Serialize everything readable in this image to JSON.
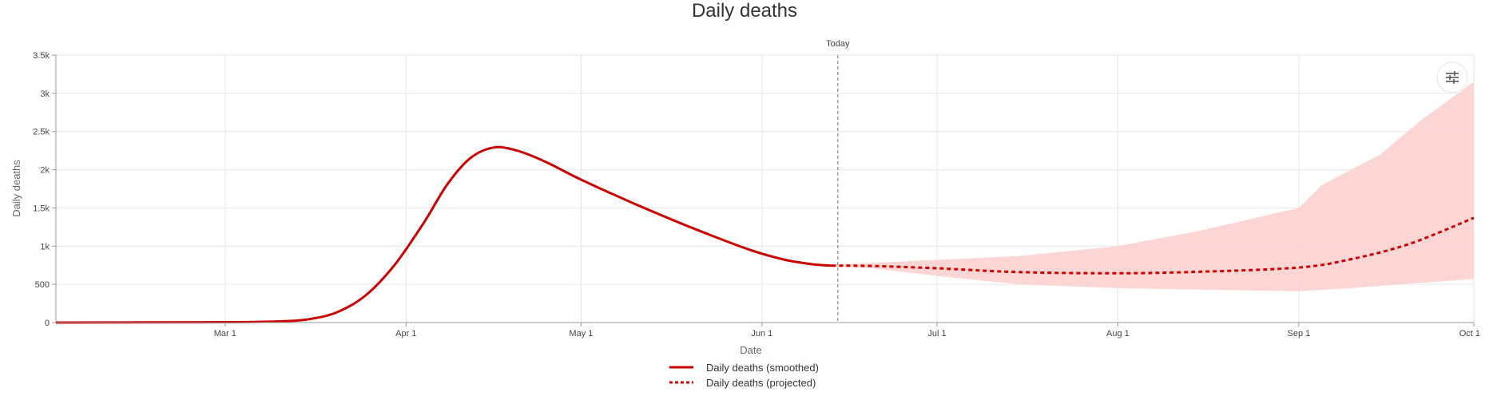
{
  "chart_data": {
    "type": "line",
    "title": "Daily deaths",
    "xlabel": "Date",
    "ylabel": "Daily deaths",
    "x_range": [
      "2020-02-01",
      "2020-10-01"
    ],
    "ylim": [
      0,
      3500
    ],
    "x_ticks": [
      {
        "date": "2020-03-01",
        "label": "Mar 1"
      },
      {
        "date": "2020-04-01",
        "label": "Apr 1"
      },
      {
        "date": "2020-05-01",
        "label": "May 1"
      },
      {
        "date": "2020-06-01",
        "label": "Jun 1"
      },
      {
        "date": "2020-07-01",
        "label": "Jul 1"
      },
      {
        "date": "2020-08-01",
        "label": "Aug 1"
      },
      {
        "date": "2020-09-01",
        "label": "Sep 1"
      },
      {
        "date": "2020-10-01",
        "label": "Oct 1"
      }
    ],
    "y_ticks": [
      {
        "value": 0,
        "label": "0"
      },
      {
        "value": 500,
        "label": "500"
      },
      {
        "value": 1000,
        "label": "1k"
      },
      {
        "value": 1500,
        "label": "1.5k"
      },
      {
        "value": 2000,
        "label": "2k"
      },
      {
        "value": 2500,
        "label": "2.5k"
      },
      {
        "value": 3000,
        "label": "3k"
      },
      {
        "value": 3500,
        "label": "3.5k"
      }
    ],
    "grid": true,
    "legend_position": "bottom-center",
    "annotation": {
      "date": "2020-06-14",
      "label": "Today"
    },
    "series": [
      {
        "name": "Daily deaths (smoothed)",
        "style": "solid",
        "color": "#cc0000",
        "points": [
          [
            "2020-02-01",
            0
          ],
          [
            "2020-03-01",
            5
          ],
          [
            "2020-03-10",
            15
          ],
          [
            "2020-03-15",
            40
          ],
          [
            "2020-03-20",
            130
          ],
          [
            "2020-03-25",
            350
          ],
          [
            "2020-03-30",
            750
          ],
          [
            "2020-04-04",
            1300
          ],
          [
            "2020-04-08",
            1800
          ],
          [
            "2020-04-12",
            2150
          ],
          [
            "2020-04-16",
            2290
          ],
          [
            "2020-04-20",
            2250
          ],
          [
            "2020-04-25",
            2100
          ],
          [
            "2020-05-01",
            1870
          ],
          [
            "2020-05-10",
            1560
          ],
          [
            "2020-05-20",
            1240
          ],
          [
            "2020-05-30",
            950
          ],
          [
            "2020-06-05",
            820
          ],
          [
            "2020-06-10",
            760
          ],
          [
            "2020-06-13",
            745
          ]
        ]
      },
      {
        "name": "Daily deaths (projected)",
        "style": "dashed",
        "color": "#cc0000",
        "points": [
          [
            "2020-06-13",
            745
          ],
          [
            "2020-06-20",
            740
          ],
          [
            "2020-07-01",
            710
          ],
          [
            "2020-07-15",
            660
          ],
          [
            "2020-08-01",
            645
          ],
          [
            "2020-08-15",
            665
          ],
          [
            "2020-09-01",
            720
          ],
          [
            "2020-09-10",
            830
          ],
          [
            "2020-09-20",
            1030
          ],
          [
            "2020-10-01",
            1370
          ]
        ]
      }
    ],
    "uncertainty_band": {
      "color": "#fcd0d0",
      "upper": [
        [
          "2020-06-13",
          760
        ],
        [
          "2020-06-20",
          780
        ],
        [
          "2020-07-01",
          820
        ],
        [
          "2020-07-15",
          870
        ],
        [
          "2020-08-01",
          1000
        ],
        [
          "2020-08-15",
          1200
        ],
        [
          "2020-09-01",
          1500
        ],
        [
          "2020-09-05",
          1800
        ],
        [
          "2020-09-15",
          2200
        ],
        [
          "2020-09-22",
          2650
        ],
        [
          "2020-10-01",
          3150
        ]
      ],
      "lower": [
        [
          "2020-06-13",
          740
        ],
        [
          "2020-06-20",
          710
        ],
        [
          "2020-07-01",
          610
        ],
        [
          "2020-07-15",
          500
        ],
        [
          "2020-08-01",
          450
        ],
        [
          "2020-08-15",
          430
        ],
        [
          "2020-09-01",
          410
        ],
        [
          "2020-09-10",
          450
        ],
        [
          "2020-09-20",
          510
        ],
        [
          "2020-10-01",
          570
        ]
      ]
    }
  },
  "controls": {
    "settings_icon": "sliders-icon"
  }
}
